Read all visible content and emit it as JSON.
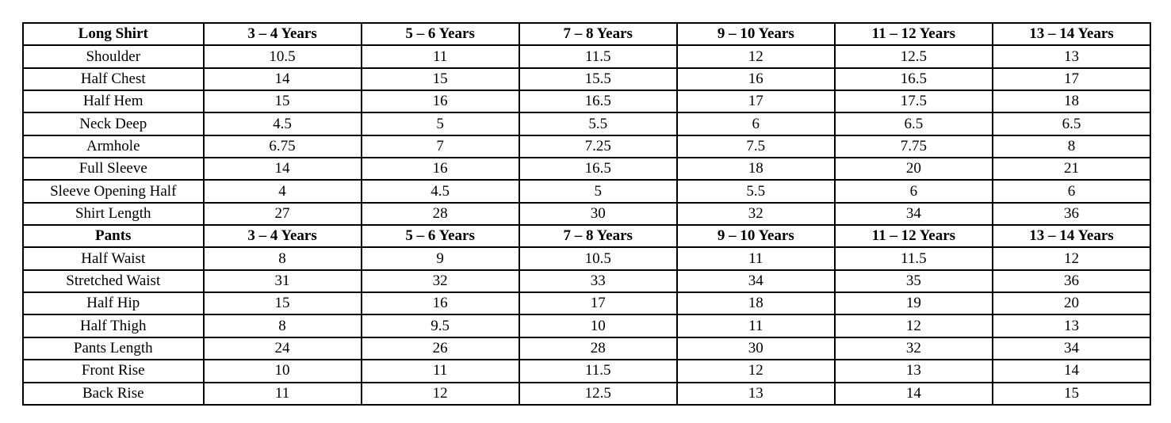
{
  "page": {
    "background_color": "#ffffff",
    "border_color": "#000000",
    "text_color": "#000000"
  },
  "table": {
    "sections": [
      {
        "header": {
          "label": "Long Shirt",
          "columns": [
            "3 – 4 Years",
            "5 – 6 Years",
            "7 – 8 Years",
            "9 – 10 Years",
            "11 – 12 Years",
            "13 – 14 Years"
          ]
        },
        "rows": [
          {
            "label": "Shoulder",
            "values": [
              "10.5",
              "11",
              "11.5",
              "12",
              "12.5",
              "13"
            ]
          },
          {
            "label": "Half Chest",
            "values": [
              "14",
              "15",
              "15.5",
              "16",
              "16.5",
              "17"
            ]
          },
          {
            "label": "Half Hem",
            "values": [
              "15",
              "16",
              "16.5",
              "17",
              "17.5",
              "18"
            ]
          },
          {
            "label": "Neck Deep",
            "values": [
              "4.5",
              "5",
              "5.5",
              "6",
              "6.5",
              "6.5"
            ]
          },
          {
            "label": "Armhole",
            "values": [
              "6.75",
              "7",
              "7.25",
              "7.5",
              "7.75",
              "8"
            ]
          },
          {
            "label": "Full Sleeve",
            "values": [
              "14",
              "16",
              "16.5",
              "18",
              "20",
              "21"
            ]
          },
          {
            "label": "Sleeve Opening Half",
            "values": [
              "4",
              "4.5",
              "5",
              "5.5",
              "6",
              "6"
            ]
          },
          {
            "label": "Shirt Length",
            "values": [
              "27",
              "28",
              "30",
              "32",
              "34",
              "36"
            ]
          }
        ]
      },
      {
        "header": {
          "label": "Pants",
          "columns": [
            "3 – 4 Years",
            "5 – 6 Years",
            "7 – 8 Years",
            "9 – 10 Years",
            "11 – 12 Years",
            "13 – 14 Years"
          ]
        },
        "rows": [
          {
            "label": "Half Waist",
            "values": [
              "8",
              "9",
              "10.5",
              "11",
              "11.5",
              "12"
            ]
          },
          {
            "label": "Stretched Waist",
            "values": [
              "31",
              "32",
              "33",
              "34",
              "35",
              "36"
            ]
          },
          {
            "label": "Half Hip",
            "values": [
              "15",
              "16",
              "17",
              "18",
              "19",
              "20"
            ]
          },
          {
            "label": "Half Thigh",
            "values": [
              "8",
              "9.5",
              "10",
              "11",
              "12",
              "13"
            ]
          },
          {
            "label": "Pants Length",
            "values": [
              "24",
              "26",
              "28",
              "30",
              "32",
              "34"
            ]
          },
          {
            "label": "Front Rise",
            "values": [
              "10",
              "11",
              "11.5",
              "12",
              "13",
              "14"
            ]
          },
          {
            "label": "Back Rise",
            "values": [
              "11",
              "12",
              "12.5",
              "13",
              "14",
              "15"
            ]
          }
        ]
      }
    ]
  }
}
